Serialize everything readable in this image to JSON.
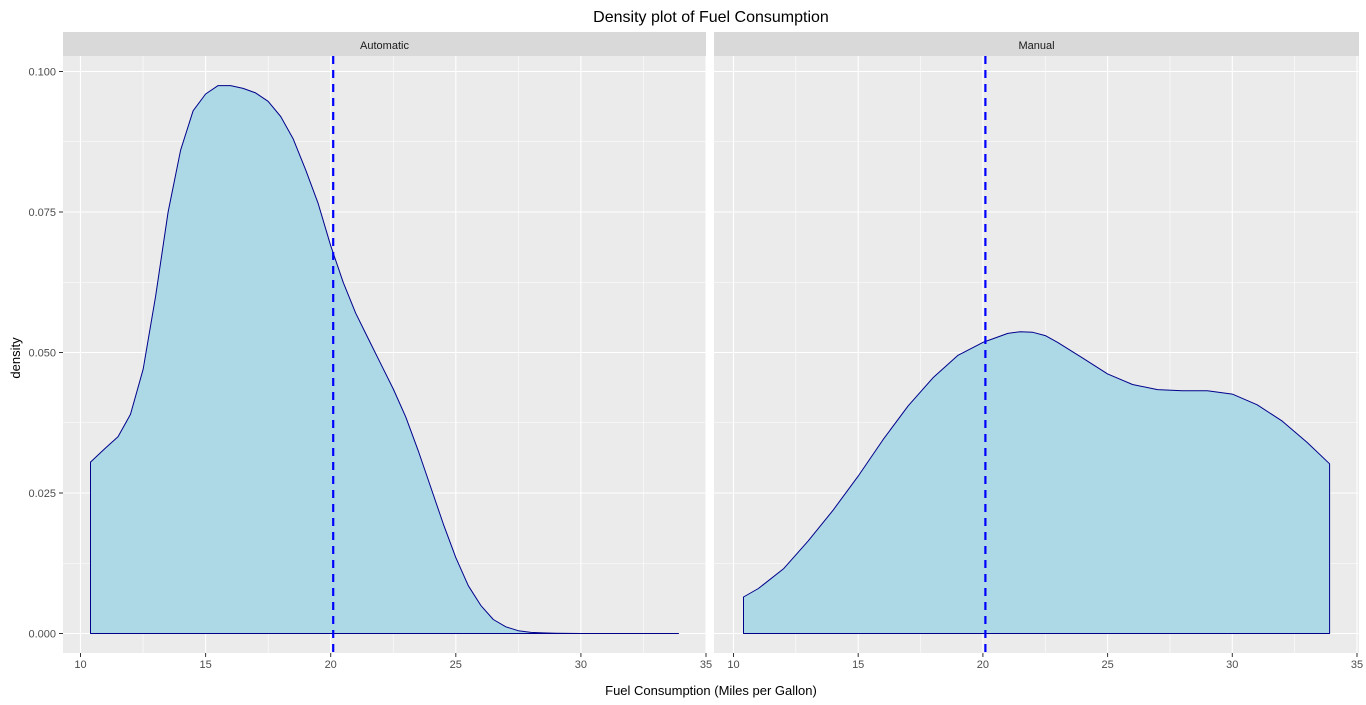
{
  "chart_data": {
    "type": "area",
    "title": "Density plot of Fuel Consumption",
    "xlabel": "Fuel Consumption (Miles per Gallon)",
    "ylabel": "density",
    "xlim": [
      10,
      35
    ],
    "ylim": [
      0,
      0.1
    ],
    "x_ticks": [
      10,
      15,
      20,
      25,
      30,
      35
    ],
    "y_ticks": [
      "0.000",
      "0.025",
      "0.050",
      "0.075",
      "0.100"
    ],
    "grid": true,
    "colors": {
      "fill": "#add8e6",
      "outline": "#00008b",
      "mean_line": "#0000ff",
      "panel_bg": "#ebebeb",
      "strip_bg": "#d9d9d9"
    },
    "panels": [
      {
        "label": "Automatic",
        "mean": 20.1,
        "x": [
          10.4,
          11.0,
          11.5,
          12.0,
          12.5,
          13.0,
          13.5,
          14.0,
          14.5,
          15.0,
          15.5,
          16.0,
          16.5,
          17.0,
          17.5,
          18.0,
          18.5,
          19.0,
          19.5,
          20.0,
          20.5,
          21.0,
          21.5,
          22.0,
          22.5,
          23.0,
          23.5,
          24.0,
          24.5,
          25.0,
          25.5,
          26.0,
          26.5,
          27.0,
          27.5,
          28.0,
          28.5,
          29.0,
          30.0,
          31.0,
          32.0,
          33.9
        ],
        "values": [
          0.0305,
          0.033,
          0.035,
          0.039,
          0.047,
          0.06,
          0.075,
          0.086,
          0.093,
          0.096,
          0.0975,
          0.0975,
          0.097,
          0.0962,
          0.0947,
          0.092,
          0.088,
          0.0825,
          0.0765,
          0.069,
          0.0625,
          0.057,
          0.0525,
          0.048,
          0.0435,
          0.0385,
          0.0325,
          0.026,
          0.0195,
          0.0135,
          0.0085,
          0.005,
          0.0025,
          0.0012,
          0.0005,
          0.0002,
          0.0001,
          5e-05,
          0.0,
          0.0,
          0.0,
          0.0
        ]
      },
      {
        "label": "Manual",
        "mean": 20.1,
        "x": [
          10.4,
          11.0,
          12.0,
          13.0,
          14.0,
          15.0,
          16.0,
          17.0,
          18.0,
          19.0,
          20.0,
          20.5,
          21.0,
          21.5,
          22.0,
          22.5,
          23.0,
          24.0,
          25.0,
          26.0,
          27.0,
          28.0,
          29.0,
          30.0,
          31.0,
          32.0,
          33.0,
          33.9
        ],
        "values": [
          0.0065,
          0.008,
          0.0115,
          0.0165,
          0.022,
          0.028,
          0.0345,
          0.0405,
          0.0455,
          0.0495,
          0.0518,
          0.0526,
          0.0534,
          0.0537,
          0.0536,
          0.053,
          0.0518,
          0.049,
          0.0462,
          0.0443,
          0.0434,
          0.0432,
          0.0432,
          0.0426,
          0.0407,
          0.0378,
          0.034,
          0.0302
        ]
      }
    ]
  }
}
